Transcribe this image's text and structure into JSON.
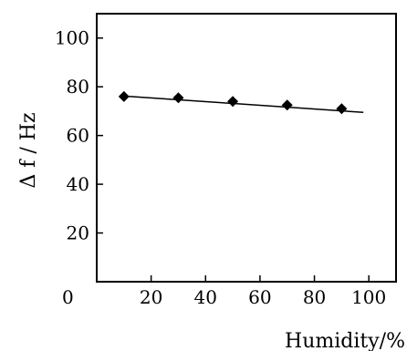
{
  "chart_data": {
    "type": "line",
    "title": "",
    "xlabel": "Humidity/%",
    "ylabel": "Δ f / Hz",
    "xlim": [
      0,
      110
    ],
    "ylim": [
      0,
      110
    ],
    "x_ticks": [
      20,
      40,
      60,
      80,
      100
    ],
    "y_ticks": [
      20,
      40,
      60,
      80,
      100
    ],
    "origin_label": "0",
    "grid": false,
    "legend": "none",
    "series": [
      {
        "marker": "diamond",
        "points": [
          {
            "x": 10,
            "y": 76
          },
          {
            "x": 30,
            "y": 75.5
          },
          {
            "x": 50,
            "y": 74
          },
          {
            "x": 70,
            "y": 72.5
          },
          {
            "x": 90,
            "y": 71
          }
        ]
      }
    ],
    "fit_line": {
      "x": [
        10,
        98
      ],
      "y": [
        76.2,
        69.5
      ]
    },
    "colors": {
      "line": "#000000",
      "marker": "#000000",
      "axis": "#000000"
    }
  }
}
